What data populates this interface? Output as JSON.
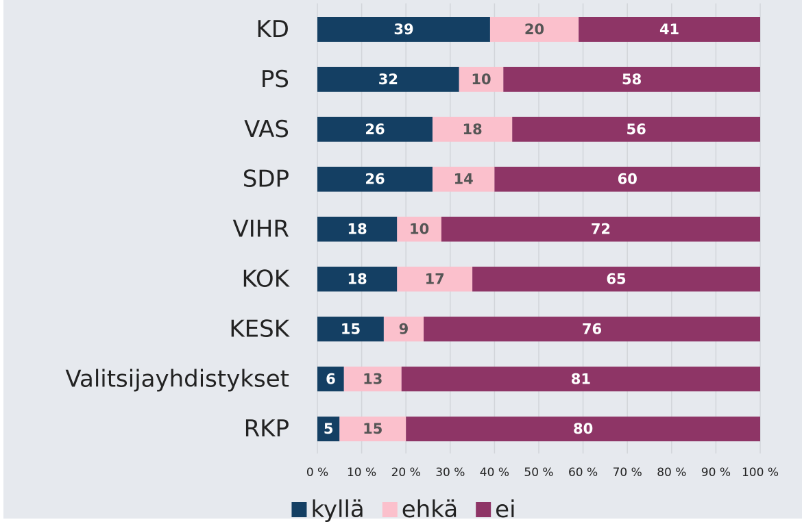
{
  "chart_data": {
    "type": "stacked-bar-horizontal",
    "categories": [
      "KD",
      "PS",
      "VAS",
      "SDP",
      "VIHR",
      "KOK",
      "KESK",
      "Valitsijayhdistykset",
      "RKP"
    ],
    "series": [
      {
        "name": "kyllä",
        "color": "#143f63",
        "values": [
          39,
          32,
          26,
          26,
          18,
          18,
          15,
          6,
          5
        ]
      },
      {
        "name": "ehkä",
        "color": "#fbc0cc",
        "values": [
          20,
          10,
          18,
          14,
          10,
          17,
          9,
          13,
          15
        ]
      },
      {
        "name": "ei",
        "color": "#8e3566",
        "values": [
          41,
          58,
          56,
          60,
          72,
          65,
          76,
          81,
          80
        ]
      }
    ],
    "xlim": [
      0,
      100
    ],
    "xticks": [
      {
        "value": 0,
        "label": "0 %"
      },
      {
        "value": 10,
        "label": "10 %"
      },
      {
        "value": 20,
        "label": "20 %"
      },
      {
        "value": 30,
        "label": "30 %"
      },
      {
        "value": 40,
        "label": "40 %"
      },
      {
        "value": 50,
        "label": "50 %"
      },
      {
        "value": 60,
        "label": "60 %"
      },
      {
        "value": 70,
        "label": "70 %"
      },
      {
        "value": 80,
        "label": "80 %"
      },
      {
        "value": 90,
        "label": "90 %"
      },
      {
        "value": 100,
        "label": "100 %"
      }
    ],
    "grid": true,
    "legend": "bottom"
  }
}
